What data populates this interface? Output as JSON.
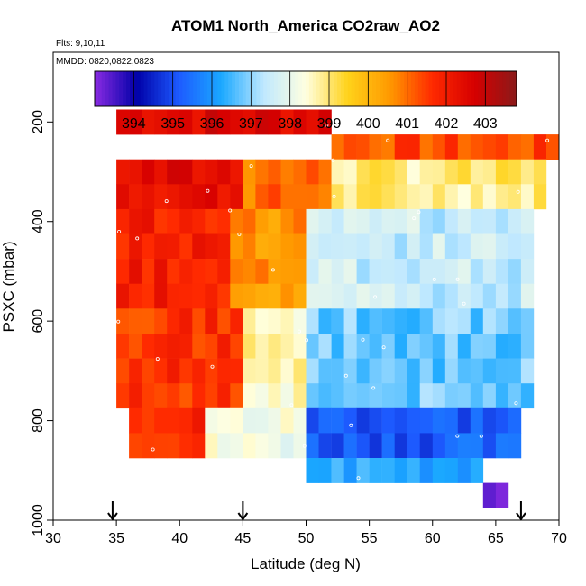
{
  "chart_data": {
    "type": "heatmap",
    "title": "ATOM1 North_America CO2raw_AO2",
    "flights_note": "Flts: 9,10,11",
    "dates_note": "MMDD: 0820,0822,0823",
    "xlabel": "Latitude (deg N)",
    "ylabel": "PSXC (mbar)",
    "xlim": [
      30,
      70
    ],
    "ylim": [
      1000,
      0
    ],
    "x_ticks": [
      30,
      35,
      40,
      45,
      50,
      55,
      60,
      65,
      70
    ],
    "y_ticks": [
      200,
      400,
      600,
      800,
      1000
    ],
    "y_reversed": true,
    "colorbar": {
      "ticks": [
        394,
        395,
        396,
        397,
        398,
        399,
        400,
        401,
        402,
        403
      ],
      "min": 393.0,
      "max": 403.8,
      "colors": [
        "#8a2be2",
        "#0000a8",
        "#1d5bff",
        "#1aa8ff",
        "#bfe8ff",
        "#ffffe0",
        "#ffd21a",
        "#ff9900",
        "#ff2a00",
        "#d60000",
        "#8b1a1a"
      ]
    },
    "grid": false,
    "arrows_lat": [
      34.7,
      45.0,
      67.0
    ],
    "lat_bins": [
      30.5,
      65.5
    ],
    "lat_bin_width": 1,
    "pressure_bin_height": 50,
    "cells": [
      {
        "lat_range": [
          35,
          52
        ],
        "p_range": [
          175,
          225
        ],
        "value": 402.6
      },
      {
        "lat_range": [
          52,
          70
        ],
        "p_range": [
          225,
          275
        ],
        "value": 401.3
      },
      {
        "lat_range": [
          35,
          45
        ],
        "p_range": [
          275,
          375
        ],
        "value": 402.4
      },
      {
        "lat_range": [
          45,
          52
        ],
        "p_range": [
          275,
          375
        ],
        "value": 401.0
      },
      {
        "lat_range": [
          52,
          69
        ],
        "p_range": [
          275,
          375
        ],
        "value": 398.9
      },
      {
        "lat_range": [
          35,
          44
        ],
        "p_range": [
          375,
          575
        ],
        "value": 402.0
      },
      {
        "lat_range": [
          44,
          50
        ],
        "p_range": [
          375,
          575
        ],
        "value": 400.6
      },
      {
        "lat_range": [
          50,
          68
        ],
        "p_range": [
          375,
          575
        ],
        "value": 397.5
      },
      {
        "lat_range": [
          35,
          45
        ],
        "p_range": [
          575,
          775
        ],
        "value": 401.6
      },
      {
        "lat_range": [
          45,
          50
        ],
        "p_range": [
          575,
          775
        ],
        "value": 398.6
      },
      {
        "lat_range": [
          50,
          68
        ],
        "p_range": [
          575,
          775
        ],
        "value": 396.8
      },
      {
        "lat_range": [
          36,
          42
        ],
        "p_range": [
          775,
          875
        ],
        "value": 401.8
      },
      {
        "lat_range": [
          42,
          50
        ],
        "p_range": [
          775,
          875
        ],
        "value": 398.2
      },
      {
        "lat_range": [
          50,
          67
        ],
        "p_range": [
          775,
          875
        ],
        "value": 395.2
      },
      {
        "lat_range": [
          50,
          64
        ],
        "p_range": [
          875,
          925
        ],
        "value": 396.3
      },
      {
        "lat_range": [
          64,
          66
        ],
        "p_range": [
          925,
          975
        ],
        "value": 393.6
      }
    ]
  }
}
